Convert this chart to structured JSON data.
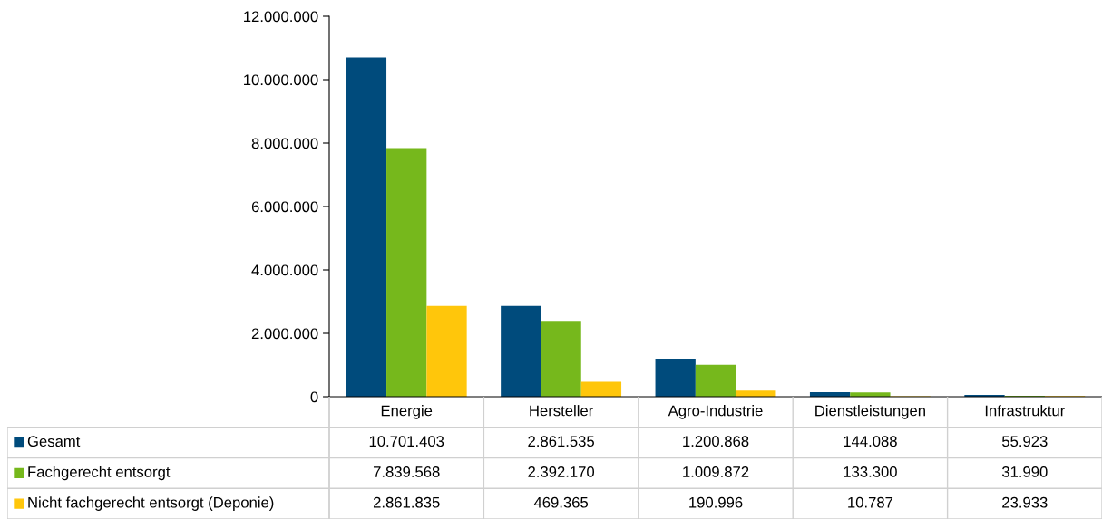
{
  "chart_data": {
    "type": "bar",
    "categories": [
      "Energie",
      "Hersteller",
      "Agro-Industrie",
      "Dienstleistungen",
      "Infrastruktur"
    ],
    "series": [
      {
        "name": "Gesamt",
        "color": "#004b7c",
        "values": [
          10701403,
          2861535,
          1200868,
          144088,
          55923
        ],
        "value_labels": [
          "10.701.403",
          "2.861.535",
          "1.200.868",
          "144.088",
          "55.923"
        ]
      },
      {
        "name": "Fachgerecht entsorgt",
        "color": "#76b81c",
        "values": [
          7839568,
          2392170,
          1009872,
          133300,
          31990
        ],
        "value_labels": [
          "7.839.568",
          "2.392.170",
          "1.009.872",
          "133.300",
          "31.990"
        ]
      },
      {
        "name": "Nicht fachgerecht entsorgt (Deponie)",
        "color": "#ffc60b",
        "values": [
          2861835,
          469365,
          190996,
          10787,
          23933
        ],
        "value_labels": [
          "2.861.835",
          "469.365",
          "190.996",
          "10.787",
          "23.933"
        ]
      }
    ],
    "ylim": [
      0,
      12000000
    ],
    "yticks": [
      0,
      {
        "value": 2000000,
        "label": "2.000.000"
      },
      {
        "value": 4000000,
        "label": "4.000.000"
      },
      {
        "value": 6000000,
        "label": "6.000.000"
      },
      {
        "value": 8000000,
        "label": "8.000.000"
      },
      {
        "value": 10000000,
        "label": "10.000.000"
      },
      {
        "value": 12000000,
        "label": "12.000.000"
      }
    ],
    "legend": "bottom",
    "grid": false
  }
}
